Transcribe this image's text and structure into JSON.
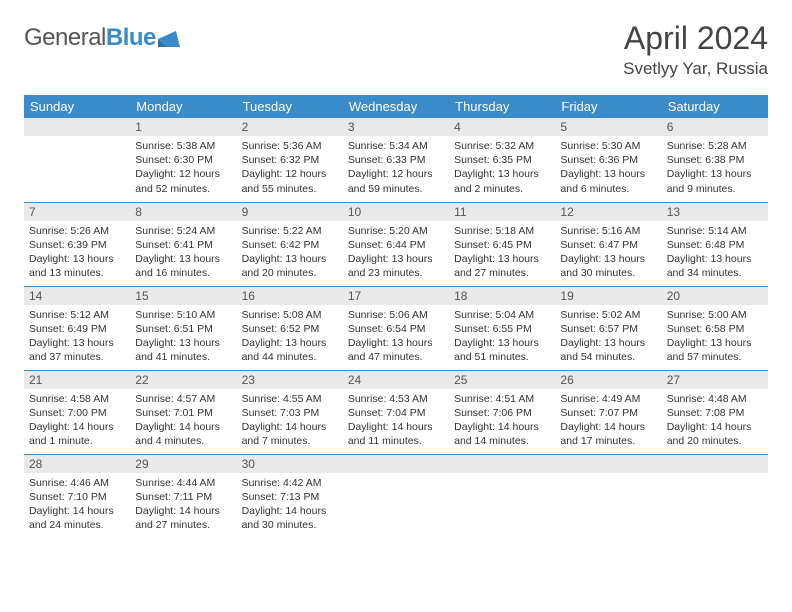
{
  "brand": {
    "part1": "General",
    "part2": "Blue"
  },
  "title": "April 2024",
  "location": "Svetlyy Yar, Russia",
  "colors": {
    "accent": "#3a8bc9",
    "daynum_bg": "#e9e9e9",
    "text": "#333333",
    "bg": "#ffffff"
  },
  "day_headers": [
    "Sunday",
    "Monday",
    "Tuesday",
    "Wednesday",
    "Thursday",
    "Friday",
    "Saturday"
  ],
  "weeks": [
    [
      {
        "num": "",
        "sunrise": "",
        "sunset": "",
        "daylight": ""
      },
      {
        "num": "1",
        "sunrise": "Sunrise: 5:38 AM",
        "sunset": "Sunset: 6:30 PM",
        "daylight": "Daylight: 12 hours and 52 minutes."
      },
      {
        "num": "2",
        "sunrise": "Sunrise: 5:36 AM",
        "sunset": "Sunset: 6:32 PM",
        "daylight": "Daylight: 12 hours and 55 minutes."
      },
      {
        "num": "3",
        "sunrise": "Sunrise: 5:34 AM",
        "sunset": "Sunset: 6:33 PM",
        "daylight": "Daylight: 12 hours and 59 minutes."
      },
      {
        "num": "4",
        "sunrise": "Sunrise: 5:32 AM",
        "sunset": "Sunset: 6:35 PM",
        "daylight": "Daylight: 13 hours and 2 minutes."
      },
      {
        "num": "5",
        "sunrise": "Sunrise: 5:30 AM",
        "sunset": "Sunset: 6:36 PM",
        "daylight": "Daylight: 13 hours and 6 minutes."
      },
      {
        "num": "6",
        "sunrise": "Sunrise: 5:28 AM",
        "sunset": "Sunset: 6:38 PM",
        "daylight": "Daylight: 13 hours and 9 minutes."
      }
    ],
    [
      {
        "num": "7",
        "sunrise": "Sunrise: 5:26 AM",
        "sunset": "Sunset: 6:39 PM",
        "daylight": "Daylight: 13 hours and 13 minutes."
      },
      {
        "num": "8",
        "sunrise": "Sunrise: 5:24 AM",
        "sunset": "Sunset: 6:41 PM",
        "daylight": "Daylight: 13 hours and 16 minutes."
      },
      {
        "num": "9",
        "sunrise": "Sunrise: 5:22 AM",
        "sunset": "Sunset: 6:42 PM",
        "daylight": "Daylight: 13 hours and 20 minutes."
      },
      {
        "num": "10",
        "sunrise": "Sunrise: 5:20 AM",
        "sunset": "Sunset: 6:44 PM",
        "daylight": "Daylight: 13 hours and 23 minutes."
      },
      {
        "num": "11",
        "sunrise": "Sunrise: 5:18 AM",
        "sunset": "Sunset: 6:45 PM",
        "daylight": "Daylight: 13 hours and 27 minutes."
      },
      {
        "num": "12",
        "sunrise": "Sunrise: 5:16 AM",
        "sunset": "Sunset: 6:47 PM",
        "daylight": "Daylight: 13 hours and 30 minutes."
      },
      {
        "num": "13",
        "sunrise": "Sunrise: 5:14 AM",
        "sunset": "Sunset: 6:48 PM",
        "daylight": "Daylight: 13 hours and 34 minutes."
      }
    ],
    [
      {
        "num": "14",
        "sunrise": "Sunrise: 5:12 AM",
        "sunset": "Sunset: 6:49 PM",
        "daylight": "Daylight: 13 hours and 37 minutes."
      },
      {
        "num": "15",
        "sunrise": "Sunrise: 5:10 AM",
        "sunset": "Sunset: 6:51 PM",
        "daylight": "Daylight: 13 hours and 41 minutes."
      },
      {
        "num": "16",
        "sunrise": "Sunrise: 5:08 AM",
        "sunset": "Sunset: 6:52 PM",
        "daylight": "Daylight: 13 hours and 44 minutes."
      },
      {
        "num": "17",
        "sunrise": "Sunrise: 5:06 AM",
        "sunset": "Sunset: 6:54 PM",
        "daylight": "Daylight: 13 hours and 47 minutes."
      },
      {
        "num": "18",
        "sunrise": "Sunrise: 5:04 AM",
        "sunset": "Sunset: 6:55 PM",
        "daylight": "Daylight: 13 hours and 51 minutes."
      },
      {
        "num": "19",
        "sunrise": "Sunrise: 5:02 AM",
        "sunset": "Sunset: 6:57 PM",
        "daylight": "Daylight: 13 hours and 54 minutes."
      },
      {
        "num": "20",
        "sunrise": "Sunrise: 5:00 AM",
        "sunset": "Sunset: 6:58 PM",
        "daylight": "Daylight: 13 hours and 57 minutes."
      }
    ],
    [
      {
        "num": "21",
        "sunrise": "Sunrise: 4:58 AM",
        "sunset": "Sunset: 7:00 PM",
        "daylight": "Daylight: 14 hours and 1 minute."
      },
      {
        "num": "22",
        "sunrise": "Sunrise: 4:57 AM",
        "sunset": "Sunset: 7:01 PM",
        "daylight": "Daylight: 14 hours and 4 minutes."
      },
      {
        "num": "23",
        "sunrise": "Sunrise: 4:55 AM",
        "sunset": "Sunset: 7:03 PM",
        "daylight": "Daylight: 14 hours and 7 minutes."
      },
      {
        "num": "24",
        "sunrise": "Sunrise: 4:53 AM",
        "sunset": "Sunset: 7:04 PM",
        "daylight": "Daylight: 14 hours and 11 minutes."
      },
      {
        "num": "25",
        "sunrise": "Sunrise: 4:51 AM",
        "sunset": "Sunset: 7:06 PM",
        "daylight": "Daylight: 14 hours and 14 minutes."
      },
      {
        "num": "26",
        "sunrise": "Sunrise: 4:49 AM",
        "sunset": "Sunset: 7:07 PM",
        "daylight": "Daylight: 14 hours and 17 minutes."
      },
      {
        "num": "27",
        "sunrise": "Sunrise: 4:48 AM",
        "sunset": "Sunset: 7:08 PM",
        "daylight": "Daylight: 14 hours and 20 minutes."
      }
    ],
    [
      {
        "num": "28",
        "sunrise": "Sunrise: 4:46 AM",
        "sunset": "Sunset: 7:10 PM",
        "daylight": "Daylight: 14 hours and 24 minutes."
      },
      {
        "num": "29",
        "sunrise": "Sunrise: 4:44 AM",
        "sunset": "Sunset: 7:11 PM",
        "daylight": "Daylight: 14 hours and 27 minutes."
      },
      {
        "num": "30",
        "sunrise": "Sunrise: 4:42 AM",
        "sunset": "Sunset: 7:13 PM",
        "daylight": "Daylight: 14 hours and 30 minutes."
      },
      {
        "num": "",
        "sunrise": "",
        "sunset": "",
        "daylight": ""
      },
      {
        "num": "",
        "sunrise": "",
        "sunset": "",
        "daylight": ""
      },
      {
        "num": "",
        "sunrise": "",
        "sunset": "",
        "daylight": ""
      },
      {
        "num": "",
        "sunrise": "",
        "sunset": "",
        "daylight": ""
      }
    ]
  ]
}
